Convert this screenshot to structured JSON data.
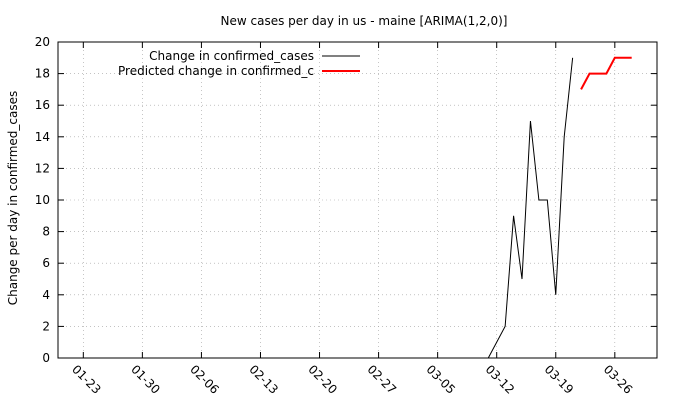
{
  "chart_data": {
    "type": "line",
    "title": "New cases per day in us - maine [ARIMA(1,2,0)]",
    "ylabel": "Change per day in confirmed_cases",
    "xlabel": "",
    "ylim": [
      0,
      20
    ],
    "yticks": [
      0,
      2,
      4,
      6,
      8,
      10,
      12,
      14,
      16,
      18,
      20
    ],
    "xlim": [
      "2020-01-20",
      "2020-03-31"
    ],
    "xticks": [
      "01-23",
      "01-30",
      "02-06",
      "02-13",
      "02-20",
      "02-27",
      "03-05",
      "03-12",
      "03-19",
      "03-26"
    ],
    "grid": true,
    "legend_position": "top-left",
    "series": [
      {
        "name": "Change in confirmed_cases",
        "color": "#000000",
        "x": [
          "2020-03-11",
          "2020-03-13",
          "2020-03-14",
          "2020-03-15",
          "2020-03-16",
          "2020-03-17",
          "2020-03-18",
          "2020-03-19",
          "2020-03-20",
          "2020-03-21"
        ],
        "values": [
          0,
          2,
          9,
          5,
          15,
          10,
          10,
          4,
          14,
          19
        ]
      },
      {
        "name": "Predicted change in confirmed_c",
        "color": "#ff0000",
        "x": [
          "2020-03-22",
          "2020-03-23",
          "2020-03-24",
          "2020-03-25",
          "2020-03-26",
          "2020-03-27",
          "2020-03-28"
        ],
        "values": [
          17,
          18,
          18,
          18,
          19,
          19,
          19
        ]
      }
    ]
  }
}
